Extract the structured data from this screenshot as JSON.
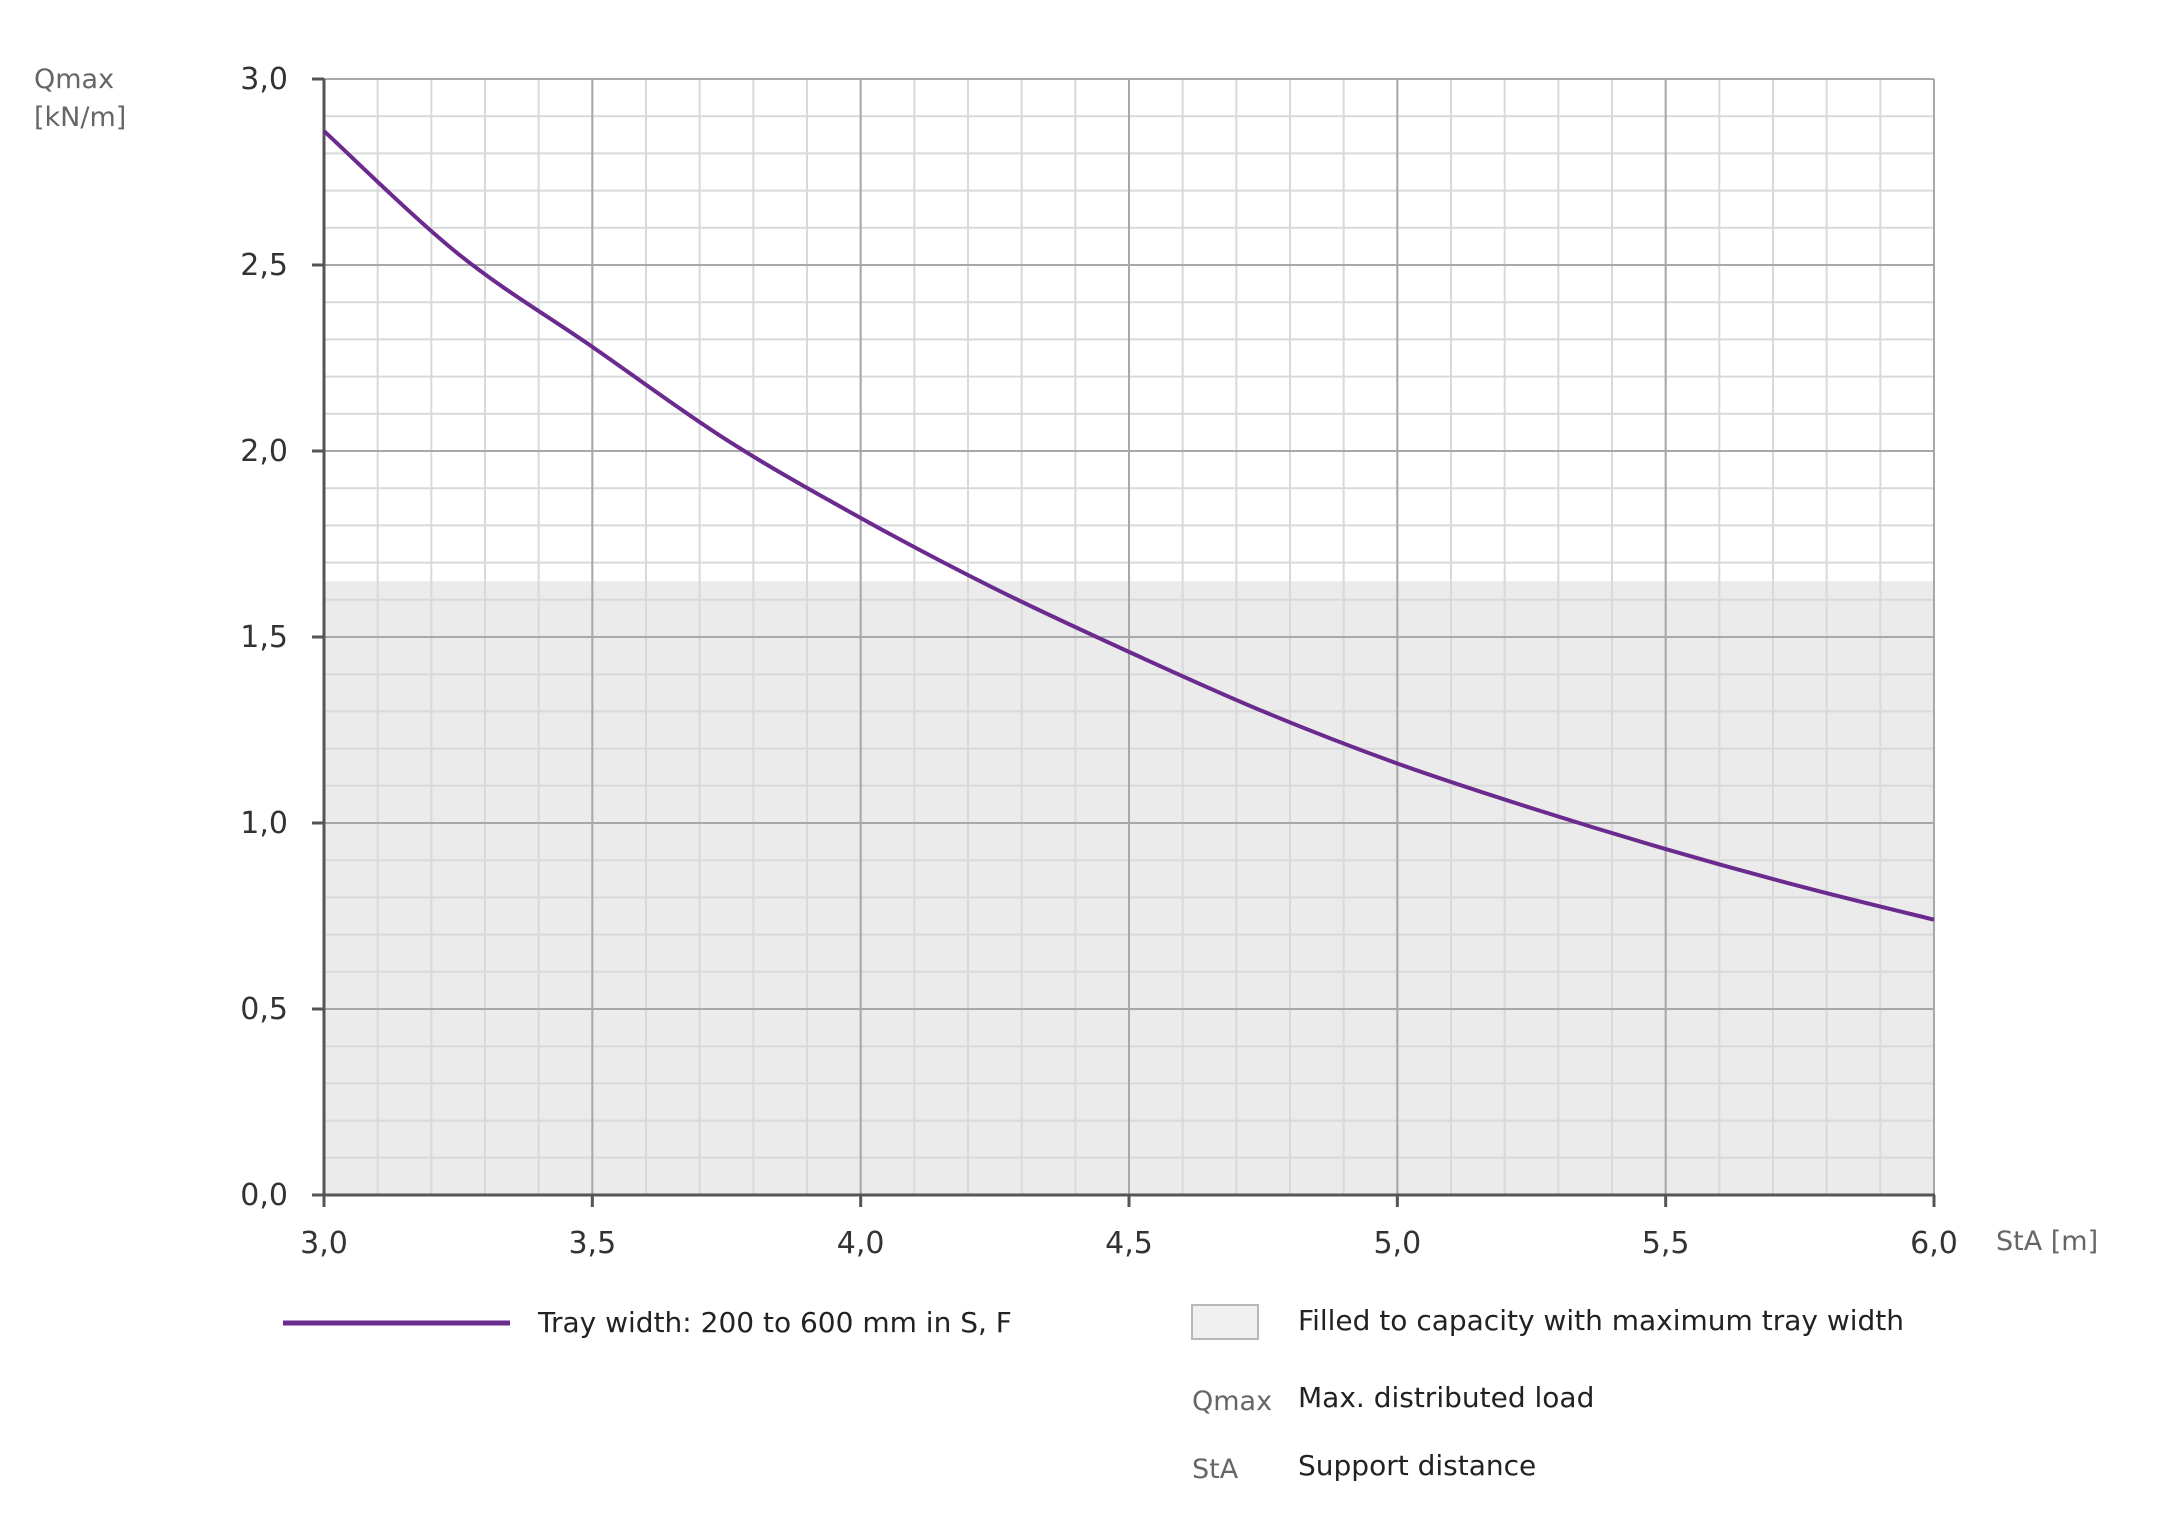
{
  "chart_data": {
    "type": "line",
    "y_axis_title_line1": "Qmax",
    "y_axis_title_line2": "[kN/m]",
    "x_axis_title": "StA [m]",
    "xlim": [
      3.0,
      6.0
    ],
    "ylim": [
      0.0,
      3.0
    ],
    "x_ticks": [
      "3,0",
      "3,5",
      "4,0",
      "4,5",
      "5,0",
      "5,5",
      "6,0"
    ],
    "y_ticks": [
      "0,0",
      "0,5",
      "1,0",
      "1,5",
      "2,0",
      "2,5",
      "3,0"
    ],
    "grid": true,
    "filled_region": {
      "y_from": 0.0,
      "y_to": 1.65,
      "color": "#ebebeb"
    },
    "series": [
      {
        "name": "Tray width: 200 to 600 mm in S, F",
        "color": "#6b2a8e",
        "x": [
          3.0,
          3.25,
          3.5,
          3.75,
          4.0,
          4.25,
          4.5,
          4.75,
          5.0,
          5.25,
          5.5,
          5.75,
          6.0
        ],
        "y": [
          2.86,
          2.53,
          2.28,
          2.03,
          1.82,
          1.63,
          1.46,
          1.3,
          1.16,
          1.04,
          0.93,
          0.83,
          0.74
        ]
      }
    ],
    "legend": {
      "filled_label": "Filled to capacity with maximum tray width",
      "defs": [
        {
          "abbr": "Qmax",
          "text": "Max. distributed load"
        },
        {
          "abbr": "StA",
          "text": "Support distance"
        }
      ]
    }
  }
}
